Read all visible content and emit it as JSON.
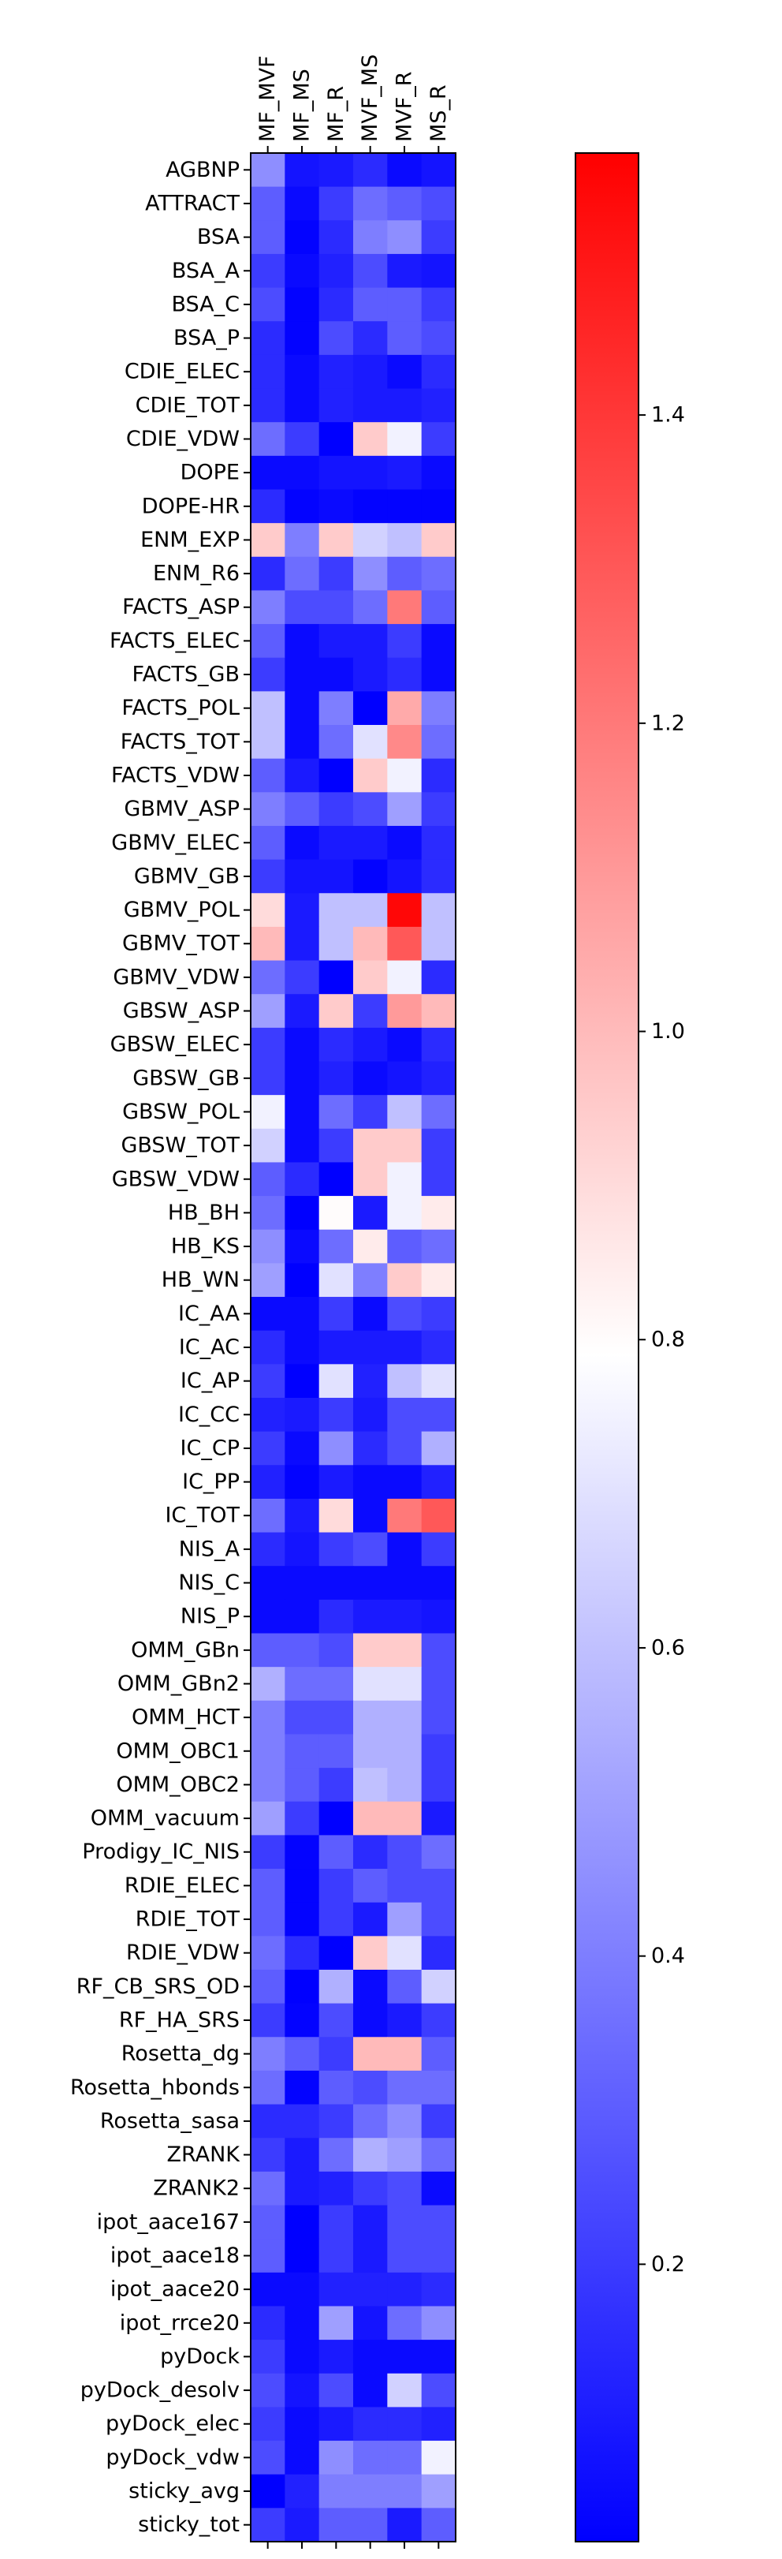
{
  "chart_data": {
    "type": "heatmap",
    "title": "",
    "xlabel": "",
    "ylabel": "",
    "columns": [
      "MF_MVF",
      "MF_MS",
      "MF_R",
      "MVF_MS",
      "MVF_R",
      "MS_R"
    ],
    "rows": [
      "AGBNP",
      "ATTRACT",
      "BSA",
      "BSA_A",
      "BSA_C",
      "BSA_P",
      "CDIE_ELEC",
      "CDIE_TOT",
      "CDIE_VDW",
      "DOPE",
      "DOPE-HR",
      "ENM_EXP",
      "ENM_R6",
      "FACTS_ASP",
      "FACTS_ELEC",
      "FACTS_GB",
      "FACTS_POL",
      "FACTS_TOT",
      "FACTS_VDW",
      "GBMV_ASP",
      "GBMV_ELEC",
      "GBMV_GB",
      "GBMV_POL",
      "GBMV_TOT",
      "GBMV_VDW",
      "GBSW_ASP",
      "GBSW_ELEC",
      "GBSW_GB",
      "GBSW_POL",
      "GBSW_TOT",
      "GBSW_VDW",
      "HB_BH",
      "HB_KS",
      "HB_WN",
      "IC_AA",
      "IC_AC",
      "IC_AP",
      "IC_CC",
      "IC_CP",
      "IC_PP",
      "IC_TOT",
      "NIS_A",
      "NIS_C",
      "NIS_P",
      "OMM_GBn",
      "OMM_GBn2",
      "OMM_HCT",
      "OMM_OBC1",
      "OMM_OBC2",
      "OMM_vacuum",
      "Prodigy_IC_NIS",
      "RDIE_ELEC",
      "RDIE_TOT",
      "RDIE_VDW",
      "RF_CB_SRS_OD",
      "RF_HA_SRS",
      "Rosetta_dg",
      "Rosetta_hbonds",
      "Rosetta_sasa",
      "ZRANK",
      "ZRANK2",
      "ipot_aace167",
      "ipot_aace18",
      "ipot_aace20",
      "ipot_rrce20",
      "pyDock",
      "pyDock_desolv",
      "pyDock_elec",
      "pyDock_vdw",
      "sticky_avg",
      "sticky_tot"
    ],
    "values": [
      [
        0.45,
        0.08,
        0.1,
        0.15,
        0.05,
        0.08
      ],
      [
        0.3,
        0.05,
        0.2,
        0.35,
        0.3,
        0.25
      ],
      [
        0.3,
        0.03,
        0.15,
        0.4,
        0.45,
        0.2
      ],
      [
        0.2,
        0.05,
        0.12,
        0.25,
        0.1,
        0.08
      ],
      [
        0.25,
        0.03,
        0.15,
        0.3,
        0.3,
        0.2
      ],
      [
        0.15,
        0.03,
        0.25,
        0.15,
        0.3,
        0.25
      ],
      [
        0.15,
        0.05,
        0.12,
        0.1,
        0.05,
        0.15
      ],
      [
        0.15,
        0.05,
        0.12,
        0.1,
        0.1,
        0.12
      ],
      [
        0.35,
        0.2,
        0.02,
        0.95,
        0.75,
        0.2
      ],
      [
        0.05,
        0.05,
        0.08,
        0.08,
        0.1,
        0.05
      ],
      [
        0.15,
        0.03,
        0.05,
        0.03,
        0.03,
        0.03
      ],
      [
        0.95,
        0.4,
        0.95,
        0.65,
        0.6,
        0.95
      ],
      [
        0.15,
        0.35,
        0.2,
        0.45,
        0.3,
        0.35
      ],
      [
        0.4,
        0.25,
        0.25,
        0.35,
        1.2,
        0.3
      ],
      [
        0.3,
        0.05,
        0.1,
        0.1,
        0.2,
        0.05
      ],
      [
        0.2,
        0.05,
        0.05,
        0.1,
        0.15,
        0.05
      ],
      [
        0.6,
        0.05,
        0.4,
        0.02,
        1.05,
        0.4
      ],
      [
        0.6,
        0.05,
        0.35,
        0.7,
        1.15,
        0.35
      ],
      [
        0.3,
        0.1,
        0.02,
        0.95,
        0.75,
        0.15
      ],
      [
        0.4,
        0.3,
        0.2,
        0.25,
        0.5,
        0.2
      ],
      [
        0.3,
        0.05,
        0.1,
        0.1,
        0.05,
        0.15
      ],
      [
        0.2,
        0.08,
        0.08,
        0.03,
        0.08,
        0.15
      ],
      [
        0.9,
        0.1,
        0.6,
        0.6,
        1.55,
        0.6
      ],
      [
        1.0,
        0.1,
        0.6,
        1.0,
        1.3,
        0.6
      ],
      [
        0.35,
        0.2,
        0.02,
        0.95,
        0.75,
        0.15
      ],
      [
        0.5,
        0.1,
        0.95,
        0.2,
        1.1,
        1.0
      ],
      [
        0.2,
        0.05,
        0.15,
        0.1,
        0.05,
        0.15
      ],
      [
        0.2,
        0.05,
        0.12,
        0.05,
        0.08,
        0.12
      ],
      [
        0.75,
        0.05,
        0.35,
        0.2,
        0.6,
        0.35
      ],
      [
        0.65,
        0.05,
        0.2,
        0.95,
        0.95,
        0.2
      ],
      [
        0.3,
        0.15,
        0.02,
        0.95,
        0.75,
        0.2
      ],
      [
        0.35,
        0.02,
        0.8,
        0.1,
        0.75,
        0.85
      ],
      [
        0.45,
        0.05,
        0.35,
        0.85,
        0.3,
        0.35
      ],
      [
        0.5,
        0.02,
        0.7,
        0.4,
        0.95,
        0.85
      ],
      [
        0.05,
        0.05,
        0.2,
        0.05,
        0.25,
        0.2
      ],
      [
        0.15,
        0.05,
        0.1,
        0.1,
        0.1,
        0.15
      ],
      [
        0.2,
        0.02,
        0.7,
        0.12,
        0.6,
        0.7
      ],
      [
        0.12,
        0.1,
        0.2,
        0.1,
        0.25,
        0.25
      ],
      [
        0.2,
        0.05,
        0.45,
        0.15,
        0.25,
        0.55
      ],
      [
        0.12,
        0.03,
        0.1,
        0.05,
        0.05,
        0.12
      ],
      [
        0.35,
        0.1,
        0.9,
        0.05,
        1.2,
        1.3
      ],
      [
        0.15,
        0.08,
        0.2,
        0.25,
        0.05,
        0.2
      ],
      [
        0.05,
        0.05,
        0.05,
        0.05,
        0.05,
        0.05
      ],
      [
        0.05,
        0.05,
        0.15,
        0.1,
        0.1,
        0.08
      ],
      [
        0.3,
        0.3,
        0.25,
        0.95,
        0.95,
        0.25
      ],
      [
        0.55,
        0.35,
        0.35,
        0.7,
        0.7,
        0.25
      ],
      [
        0.4,
        0.25,
        0.25,
        0.55,
        0.55,
        0.25
      ],
      [
        0.4,
        0.3,
        0.3,
        0.55,
        0.55,
        0.2
      ],
      [
        0.4,
        0.3,
        0.2,
        0.6,
        0.55,
        0.2
      ],
      [
        0.5,
        0.2,
        0.02,
        1.0,
        1.0,
        0.1
      ],
      [
        0.2,
        0.03,
        0.3,
        0.15,
        0.25,
        0.35
      ],
      [
        0.3,
        0.03,
        0.2,
        0.3,
        0.25,
        0.25
      ],
      [
        0.3,
        0.03,
        0.2,
        0.1,
        0.5,
        0.25
      ],
      [
        0.35,
        0.15,
        0.02,
        0.95,
        0.7,
        0.15
      ],
      [
        0.3,
        0.02,
        0.55,
        0.05,
        0.3,
        0.65
      ],
      [
        0.2,
        0.03,
        0.25,
        0.05,
        0.1,
        0.2
      ],
      [
        0.4,
        0.3,
        0.2,
        1.0,
        1.0,
        0.3
      ],
      [
        0.35,
        0.03,
        0.3,
        0.25,
        0.35,
        0.35
      ],
      [
        0.15,
        0.15,
        0.2,
        0.35,
        0.45,
        0.2
      ],
      [
        0.2,
        0.1,
        0.35,
        0.55,
        0.5,
        0.35
      ],
      [
        0.35,
        0.1,
        0.12,
        0.2,
        0.25,
        0.05
      ],
      [
        0.3,
        0.02,
        0.2,
        0.1,
        0.25,
        0.25
      ],
      [
        0.3,
        0.02,
        0.2,
        0.1,
        0.25,
        0.25
      ],
      [
        0.05,
        0.05,
        0.12,
        0.12,
        0.12,
        0.15
      ],
      [
        0.15,
        0.05,
        0.5,
        0.08,
        0.35,
        0.45
      ],
      [
        0.2,
        0.05,
        0.1,
        0.05,
        0.05,
        0.05
      ],
      [
        0.25,
        0.08,
        0.25,
        0.05,
        0.65,
        0.25
      ],
      [
        0.2,
        0.05,
        0.1,
        0.15,
        0.15,
        0.12
      ],
      [
        0.25,
        0.05,
        0.45,
        0.35,
        0.35,
        0.75
      ],
      [
        0.02,
        0.12,
        0.4,
        0.4,
        0.4,
        0.5
      ],
      [
        0.2,
        0.1,
        0.3,
        0.3,
        0.1,
        0.3
      ]
    ],
    "colormap": [
      "#0000ff",
      "#ffffff",
      "#ff0000"
    ],
    "colorbar": {
      "range": [
        0.02,
        1.57
      ],
      "midpoint": 0.79,
      "ticks": [
        0.2,
        0.4,
        0.6,
        0.8,
        1.0,
        1.2,
        1.4
      ],
      "tick_labels": [
        "0.2",
        "0.4",
        "0.6",
        "0.8",
        "1.0",
        "1.2",
        "1.4"
      ]
    }
  }
}
